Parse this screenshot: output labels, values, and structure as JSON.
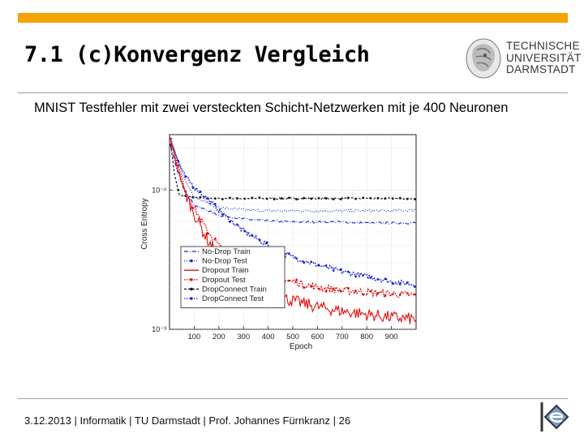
{
  "slide": {
    "title": "7.1 (c)Konvergenz Vergleich",
    "subtitle": "MNIST Testfehler mit zwei versteckten Schicht-Netzwerken mit je 400 Neuronen"
  },
  "logo": {
    "line1": "TECHNISCHE",
    "line2": "UNIVERSITÄT",
    "line3": "DARMSTADT"
  },
  "footer": {
    "date": "3.12.2013",
    "dept": "Informatik",
    "univ": "TU Darmstadt",
    "author": "Prof. Johannes Fürnkranz",
    "page": "26",
    "sep": " | "
  },
  "colors": {
    "accent_bar": "#f5a300",
    "red": "#e01010",
    "blue": "#1020d0",
    "black": "#111111"
  },
  "chart_data": {
    "type": "line",
    "xlabel": "Epoch",
    "ylabel": "Cross Entropy",
    "xlim": [
      0,
      1000
    ],
    "ylim": [
      0.001,
      0.025
    ],
    "log_y": true,
    "grid": true,
    "legend_position": "bottom-left",
    "x_ticks": [
      100,
      200,
      300,
      400,
      500,
      600,
      700,
      800,
      900
    ],
    "y_ticks": [
      {
        "value": 0.01,
        "label": "10⁻²"
      },
      {
        "value": 0.001,
        "label": "10⁻³"
      }
    ],
    "series": [
      {
        "name": "No-Drop Train",
        "color": "blue",
        "style": "dashdot",
        "x": [
          0,
          30,
          60,
          100,
          200,
          300,
          400,
          500,
          600,
          700,
          800,
          900,
          1000
        ],
        "y": [
          0.022,
          0.014,
          0.01,
          0.0078,
          0.0066,
          0.0062,
          0.006,
          0.0059,
          0.0059,
          0.0059,
          0.0058,
          0.0058,
          0.0058
        ]
      },
      {
        "name": "No-Drop Test",
        "color": "blue",
        "style": "dotted",
        "x": [
          0,
          30,
          60,
          100,
          200,
          300,
          400,
          500,
          600,
          700,
          800,
          900,
          1000
        ],
        "y": [
          0.024,
          0.017,
          0.012,
          0.009,
          0.0075,
          0.0072,
          0.0071,
          0.0071,
          0.0071,
          0.0071,
          0.0071,
          0.0071,
          0.0072
        ]
      },
      {
        "name": "Dropout Train",
        "color": "red",
        "style": "solid",
        "x": [
          0,
          30,
          60,
          100,
          150,
          200,
          250,
          300,
          350,
          400,
          500,
          600,
          700,
          800,
          900,
          1000
        ],
        "y": [
          0.024,
          0.015,
          0.0098,
          0.0068,
          0.0045,
          0.0034,
          0.0027,
          0.0023,
          0.002,
          0.0018,
          0.0016,
          0.00145,
          0.00135,
          0.00128,
          0.00122,
          0.00118
        ]
      },
      {
        "name": "Dropout Test",
        "color": "red",
        "style": "dots",
        "x": [
          0,
          30,
          60,
          100,
          150,
          200,
          250,
          300,
          350,
          400,
          500,
          600,
          700,
          800,
          900,
          1000
        ],
        "y": [
          0.025,
          0.016,
          0.0105,
          0.0074,
          0.0052,
          0.004,
          0.0033,
          0.0029,
          0.0026,
          0.0024,
          0.0022,
          0.002,
          0.0019,
          0.00185,
          0.0018,
          0.00175
        ]
      },
      {
        "name": "DropConnect Train",
        "color": "black",
        "style": "dashed",
        "x": [
          0,
          20,
          40,
          100,
          200,
          300,
          400,
          500,
          600,
          700,
          800,
          900,
          1000
        ],
        "y": [
          0.025,
          0.013,
          0.0092,
          0.0088,
          0.0087,
          0.0087,
          0.0087,
          0.0087,
          0.0087,
          0.0087,
          0.0087,
          0.0087,
          0.0087
        ]
      },
      {
        "name": "DropConnect Test",
        "color": "blue",
        "style": "dots",
        "x": [
          0,
          30,
          60,
          100,
          150,
          200,
          250,
          300,
          350,
          400,
          450,
          500,
          600,
          700,
          800,
          900,
          1000
        ],
        "y": [
          0.025,
          0.017,
          0.0128,
          0.0105,
          0.0088,
          0.0072,
          0.006,
          0.0051,
          0.0045,
          0.004,
          0.0036,
          0.0033,
          0.0029,
          0.0026,
          0.0024,
          0.0022,
          0.0021
        ]
      }
    ]
  }
}
